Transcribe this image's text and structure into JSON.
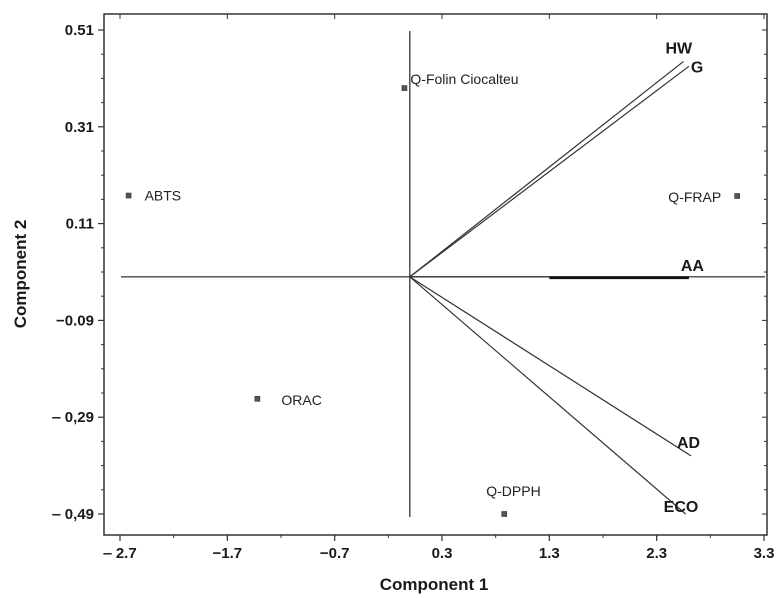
{
  "chart_data": {
    "type": "biplot",
    "title": "",
    "xlabel": "Component  1",
    "ylabel": "Component  2",
    "xlim": [
      -2.8,
      3.3
    ],
    "ylim": [
      -0.51,
      0.51
    ],
    "grid": false,
    "x_ticks": [
      {
        "value": -2.7,
        "label": "‒ 2.7"
      },
      {
        "value": -1.7,
        "label": "−1.7"
      },
      {
        "value": -0.7,
        "label": "−0.7"
      },
      {
        "value": 0.3,
        "label": "0.3"
      },
      {
        "value": 1.3,
        "label": "1.3"
      },
      {
        "value": 2.3,
        "label": "2.3"
      },
      {
        "value": 3.3,
        "label": "3.3"
      }
    ],
    "y_ticks": [
      {
        "value": 0.51,
        "label": "0.51"
      },
      {
        "value": 0.31,
        "label": "0.31"
      },
      {
        "value": 0.11,
        "label": "0.11"
      },
      {
        "value": -0.09,
        "label": "−0.09"
      },
      {
        "value": -0.29,
        "label": "‒ 0,29"
      },
      {
        "value": -0.49,
        "label": "‒ 0,49"
      }
    ],
    "points": [
      {
        "name": "Q-Folin Ciocalteu",
        "x": -0.05,
        "y": 0.39
      },
      {
        "name": "ABTS",
        "x": -2.62,
        "y": 0.168
      },
      {
        "name": "Q-FRAP",
        "x": 3.05,
        "y": 0.167
      },
      {
        "name": "ORAC",
        "x": -1.42,
        "y": -0.252
      },
      {
        "name": "Q-DPPH",
        "x": 0.88,
        "y": -0.49
      }
    ],
    "vectors": [
      {
        "name": "HW",
        "x": 2.55,
        "y": 0.445
      },
      {
        "name": "G",
        "x": 2.6,
        "y": 0.435
      },
      {
        "name": "AA",
        "x": 2.6,
        "y": 0.0
      },
      {
        "name": "AD",
        "x": 2.62,
        "y": -0.37
      },
      {
        "name": "ECO",
        "x": 2.57,
        "y": -0.49
      }
    ]
  }
}
